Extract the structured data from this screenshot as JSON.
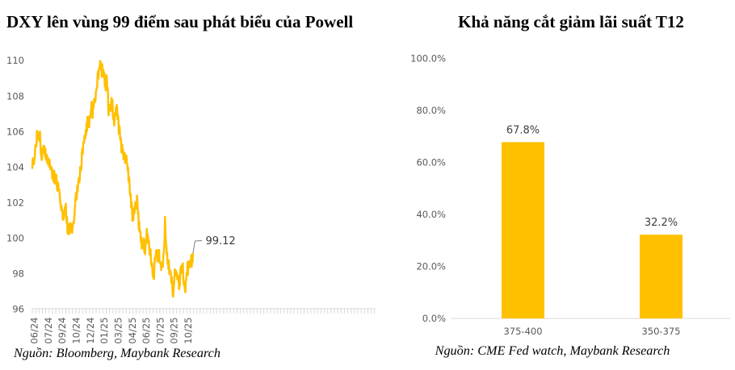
{
  "page": {
    "background": "#ffffff"
  },
  "left_chart": {
    "title": "DXY lên vùng 99 điểm sau phát biểu của Powell",
    "source": "Nguồn: Bloomberg, Maybank Research",
    "annotation_label": "99.12",
    "series_color": "#FFC000",
    "axis_color": "#D9D9D9",
    "label_color": "#595959"
  },
  "right_chart": {
    "title": "Khả năng cắt giảm lãi suất T12",
    "source": "Nguồn: CME Fed watch, Maybank Research",
    "bar_color": "#FFC000",
    "axis_color": "#D9D9D9",
    "label_color": "#595959",
    "value_label_color": "#404040"
  },
  "chart_data": [
    {
      "type": "line",
      "name": "DXY index (daily)",
      "title": "DXY lên vùng 99 điểm sau phát biểu của Powell",
      "x_tick_labels": [
        "06/24",
        "07/24",
        "09/24",
        "10/24",
        "12/24",
        "01/25",
        "03/25",
        "04/25",
        "06/25",
        "07/25",
        "09/25",
        "10/25"
      ],
      "y_ticks": [
        96,
        98,
        100,
        102,
        104,
        106,
        108,
        110
      ],
      "ylim": [
        96,
        110
      ],
      "grid": false,
      "legend": false,
      "last_value": 99.12,
      "annotation": "99.12",
      "values": [
        103.95,
        104.49,
        104.37,
        104.24,
        104.17,
        104.44,
        104.63,
        105.17,
        105.26,
        105.16,
        105.27,
        106.05,
        105.75,
        105.94,
        105.69,
        105.71,
        105.49,
        105.92,
        106.01,
        105.41,
        104.74,
        104.72,
        104.4,
        104.45,
        105.06,
        104.94,
        105.11,
        105.21,
        104.83,
        105.15,
        104.62,
        105.02,
        104.41,
        104.58,
        104.7,
        104.27,
        104.59,
        104.14,
        104.17,
        104.46,
        104.03,
        104.4,
        103.89,
        103.89,
        103.95,
        104.02,
        103.91,
        103.35,
        103.62,
        103.83,
        103.18,
        103.62,
        103.78,
        103.07,
        103.61,
        103.34,
        103.54,
        103.55,
        102.91,
        102.67,
        103.07,
        103.13,
        102.71,
        102.77,
        102.61,
        102.34,
        101.95,
        101.94,
        101.58,
        101.81,
        101.56,
        101.51,
        101.04,
        101.03,
        101.11,
        101.4,
        101.57,
        101.76,
        101.59,
        101.95,
        101.19,
        100.86,
        101.19,
        100.26,
        100.62,
        100.79,
        100.26,
        100.22,
        100.78,
        100.83,
        100.84,
        100.81,
        100.33,
        100.57,
        100.3,
        100.62,
        100.77,
        100.92,
        100.84,
        101.08,
        101.51,
        101.92,
        102.29,
        102.54,
        102.16,
        102.3,
        102.95,
        102.62,
        103.0,
        103.32,
        103.4,
        103.14,
        103.37,
        104.02,
        103.8,
        103.84,
        103.99,
        104.83,
        105.05,
        104.75,
        105.33,
        105.43,
        105.36,
        105.77,
        105.58,
        105.65,
        106.09,
        105.84,
        106.48,
        106.02,
        106.83,
        106.52,
        106.82,
        106.36,
        106.24,
        106.87,
        106.82,
        106.8,
        107.08,
        107.36,
        107.69,
        107.42,
        106.77,
        107.3,
        107.29,
        107.52,
        107.84,
        107.79,
        107.67,
        107.76,
        108.25,
        108.33,
        108.48,
        108.52,
        109.24,
        109.41,
        108.99,
        109.51,
        109.61,
        109.62,
        109.98,
        109.95,
        109.5,
        109.68,
        109.09,
        109.8,
        109.42,
        109.15,
        109.45,
        109.06,
        109.29,
        108.54,
        108.74,
        108.32,
        109.11,
        109.18,
        108.8,
        108.39,
        108.45,
        107.43,
        106.92,
        107.4,
        107.27,
        107.51,
        107.32,
        107.17,
        107.67,
        107.9,
        107.55,
        107.79,
        106.9,
        106.69,
        106.78,
        106.35,
        106.65,
        107.06,
        106.92,
        107.36,
        107.06,
        107.5,
        107.36,
        106.69,
        106.93,
        106.72,
        105.87,
        106.35,
        106.23,
        105.66,
        105.49,
        105.62,
        104.89,
        104.81,
        105.27,
        104.79,
        105.0,
        104.44,
        104.79,
        104.43,
        104.8,
        104.23,
        104.43,
        104.64,
        104.65,
        104.24,
        104.18,
        103.79,
        103.97,
        103.18,
        103.45,
        103.25,
        102.57,
        102.39,
        102.5,
        101.72,
        102.02,
        101.84,
        100.97,
        101.49,
        101.01,
        101.52,
        101.68,
        101.4,
        101.78,
        102.03,
        101.67,
        101.66,
        101.85,
        102.4,
        101.98,
        101.38,
        101.47,
        100.5,
        100.95,
        100.36,
        100.43,
        100.32,
        99.8,
        100.06,
        99.41,
        99.73,
        99.43,
        99.49,
        99.82,
        99.99,
        99.22,
        99.63,
        99.09,
        99.59,
        99.9,
        99.74,
        100.52,
        100.06,
        100.21,
        100.07,
        99.68,
        99.86,
        99.32,
        99.06,
        99.4,
        99.34,
        98.64,
        98.45,
        98.61,
        98.3,
        97.86,
        98.09,
        97.72,
        97.7,
        98.47,
        98.88,
        98.93,
        99.03,
        99.3,
        99.02,
        99.33,
        98.69,
        98.93,
        98.79,
        99.14,
        99.34,
        98.63,
        98.59,
        98.66,
        98.62,
        98.2,
        98.59,
        98.46,
        98.4,
        98.39,
        99.07,
        99.1,
        99.51,
        100.03,
        101.2,
        100.35,
        99.72,
        99.62,
        99.1,
        99.19,
        98.54,
        98.75,
        98.26,
        98.75,
        97.99,
        98.21,
        98.09,
        98.13,
        97.85,
        97.46,
        97.82,
        97.42,
        96.84,
        96.7,
        96.93,
        97.34,
        97.64,
        98.25,
        98.13,
        97.93,
        98.16,
        97.88,
        98.03,
        97.66,
        97.84,
        97.88,
        97.68,
        97.12,
        97.26,
        97.37,
        98.18,
        98.35,
        98.42,
        98.05,
        98.45,
        98.45,
        98.58,
        97.72,
        97.46,
        97.33,
        97.52,
        97.02,
        96.95,
        97.57,
        97.67,
        98.04,
        97.95,
        98.64,
        97.93,
        98.69,
        98.38,
        98.69,
        98.35,
        98.44,
        98.67,
        98.71,
        99.06,
        98.39,
        98.99,
        98.65,
        99.12
      ]
    },
    {
      "type": "bar",
      "title": "Khả năng cắt giảm lãi suất T12",
      "categories": [
        "375-400",
        "350-375"
      ],
      "values": [
        67.8,
        32.2
      ],
      "value_labels": [
        "67.8%",
        "32.2%"
      ],
      "y_ticks": [
        0,
        20,
        40,
        60,
        80,
        100
      ],
      "y_tick_labels": [
        "0.0%",
        "20.0%",
        "40.0%",
        "60.0%",
        "80.0%",
        "100.0%"
      ],
      "ylim": [
        0,
        100
      ],
      "grid": false,
      "legend": false,
      "xlabel": "",
      "ylabel": ""
    }
  ]
}
